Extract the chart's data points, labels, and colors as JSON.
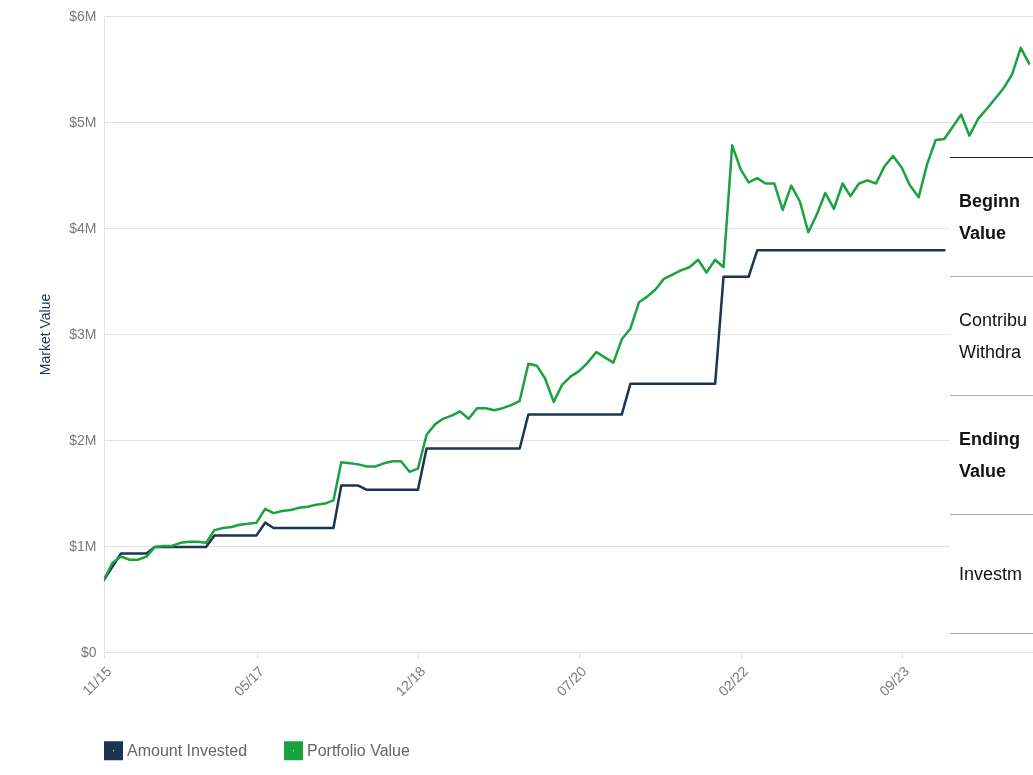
{
  "chart_data": {
    "type": "line",
    "ylabel": "Market Value",
    "legend": "bottom",
    "grid": "y",
    "line_style": "solid",
    "ylim": [
      0,
      6
    ],
    "yticks": [
      {
        "value": 0,
        "label": "$0"
      },
      {
        "value": 1,
        "label": "$1M"
      },
      {
        "value": 2,
        "label": "$2M"
      },
      {
        "value": 3,
        "label": "$3M"
      },
      {
        "value": 4,
        "label": "$4M"
      },
      {
        "value": 5,
        "label": "$5M"
      },
      {
        "value": 6,
        "label": "$6M"
      }
    ],
    "xlim": [
      "2015-11-01",
      "2024-12-15"
    ],
    "xticks": [
      {
        "value": "2015-11-01",
        "label": "11/15"
      },
      {
        "value": "2017-05-01",
        "label": "05/17"
      },
      {
        "value": "2018-12-01",
        "label": "12/18"
      },
      {
        "value": "2020-07-01",
        "label": "07/20"
      },
      {
        "value": "2022-02-01",
        "label": "02/22"
      },
      {
        "value": "2023-09-01",
        "label": "09/23"
      }
    ],
    "series": [
      {
        "name": "Amount Invested",
        "color": "#1c3550",
        "x": [
          "2015-11",
          "2016-01",
          "2016-04",
          "2016-05",
          "2016-11",
          "2016-12",
          "2017-05",
          "2017-06",
          "2017-07",
          "2018-02",
          "2018-03",
          "2018-05",
          "2018-06",
          "2018-12",
          "2019-01",
          "2019-12",
          "2020-01",
          "2020-12",
          "2021-01",
          "2021-11",
          "2021-12",
          "2022-03",
          "2022-04",
          "2024-02"
        ],
        "values": [
          0.68,
          0.93,
          0.93,
          0.99,
          0.99,
          1.1,
          1.1,
          1.22,
          1.17,
          1.17,
          1.57,
          1.57,
          1.53,
          1.53,
          1.92,
          1.92,
          2.24,
          2.24,
          2.53,
          2.53,
          3.54,
          3.54,
          3.79,
          3.79
        ]
      },
      {
        "name": "Portfolio Value",
        "color": "#1aa241",
        "x": [
          "2015-11",
          "2015-12",
          "2016-01",
          "2016-02",
          "2016-03",
          "2016-04",
          "2016-05",
          "2016-06",
          "2016-07",
          "2016-08",
          "2016-09",
          "2016-10",
          "2016-11",
          "2016-12",
          "2017-01",
          "2017-02",
          "2017-03",
          "2017-04",
          "2017-05",
          "2017-06",
          "2017-07",
          "2017-08",
          "2017-09",
          "2017-10",
          "2017-11",
          "2017-12",
          "2018-01",
          "2018-02",
          "2018-03",
          "2018-04",
          "2018-05",
          "2018-06",
          "2018-07",
          "2018-08",
          "2018-09",
          "2018-10",
          "2018-11",
          "2018-12",
          "2019-01",
          "2019-02",
          "2019-03",
          "2019-04",
          "2019-05",
          "2019-06",
          "2019-07",
          "2019-08",
          "2019-09",
          "2019-10",
          "2019-11",
          "2019-12",
          "2020-01",
          "2020-02",
          "2020-03",
          "2020-04",
          "2020-05",
          "2020-06",
          "2020-07",
          "2020-08",
          "2020-09",
          "2020-10",
          "2020-11",
          "2020-12",
          "2021-01",
          "2021-02",
          "2021-03",
          "2021-04",
          "2021-05",
          "2021-06",
          "2021-07",
          "2021-08",
          "2021-09",
          "2021-10",
          "2021-11",
          "2021-12",
          "2022-01",
          "2022-02",
          "2022-03",
          "2022-04",
          "2022-05",
          "2022-06",
          "2022-07",
          "2022-08",
          "2022-09",
          "2022-10",
          "2022-11",
          "2022-12",
          "2023-01",
          "2023-02",
          "2023-03",
          "2023-04",
          "2023-05",
          "2023-06",
          "2023-07",
          "2023-08",
          "2023-09",
          "2023-10",
          "2023-11",
          "2023-12",
          "2024-01",
          "2024-02",
          "2024-03",
          "2024-04",
          "2024-05",
          "2024-06",
          "2024-07",
          "2024-08",
          "2024-09",
          "2024-10",
          "2024-11",
          "2024-12"
        ],
        "values": [
          0.68,
          0.84,
          0.9,
          0.87,
          0.87,
          0.9,
          0.99,
          1.0,
          1.0,
          1.03,
          1.04,
          1.04,
          1.03,
          1.15,
          1.17,
          1.18,
          1.2,
          1.21,
          1.22,
          1.35,
          1.31,
          1.33,
          1.34,
          1.36,
          1.37,
          1.39,
          1.4,
          1.43,
          1.79,
          1.78,
          1.77,
          1.75,
          1.75,
          1.78,
          1.8,
          1.8,
          1.7,
          1.73,
          2.05,
          2.15,
          2.2,
          2.23,
          2.27,
          2.2,
          2.3,
          2.3,
          2.28,
          2.3,
          2.33,
          2.37,
          2.72,
          2.7,
          2.58,
          2.36,
          2.52,
          2.6,
          2.65,
          2.73,
          2.83,
          2.78,
          2.73,
          2.95,
          3.05,
          3.3,
          3.35,
          3.42,
          3.52,
          3.56,
          3.6,
          3.63,
          3.7,
          3.58,
          3.7,
          3.63,
          4.78,
          4.55,
          4.43,
          4.47,
          4.42,
          4.42,
          4.17,
          4.4,
          4.25,
          3.96,
          4.13,
          4.33,
          4.18,
          4.42,
          4.3,
          4.42,
          4.45,
          4.42,
          4.58,
          4.68,
          4.57,
          4.4,
          4.29,
          4.6,
          4.83,
          4.84,
          4.95,
          5.07,
          4.87,
          5.03,
          5.12,
          5.22,
          5.32,
          5.45,
          5.7,
          5.55
        ]
      }
    ],
    "annotations": [
      "Beginn Value",
      "Contribu Withdra",
      "Ending Value",
      "Investm"
    ]
  }
}
